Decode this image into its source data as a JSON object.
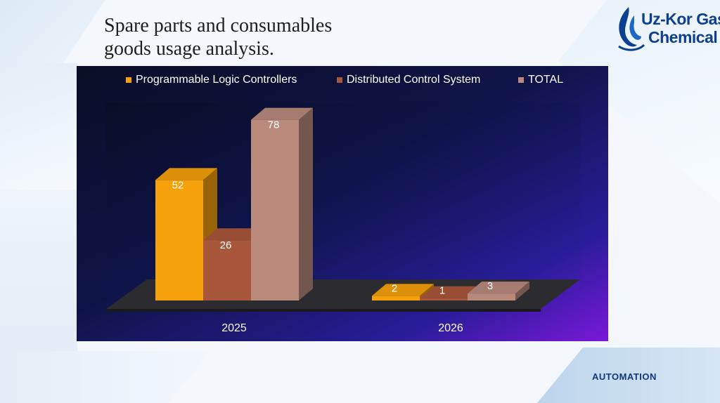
{
  "slide": {
    "title_line1": "Spare parts and consumables",
    "title_line2": "goods usage analysis.",
    "logo_line1": "Uz-Kor Gas",
    "logo_line2": "Chemical",
    "footer_label": "AUTOMATION"
  },
  "colors": {
    "chart_bg_dark": "#0b1030",
    "chart_bg_purple": "#7b16d6",
    "series1": "#f5a10c",
    "series2": "#a9573a",
    "series3": "#b98a7c",
    "floor": "#2a2a2e",
    "logo_blue": "#0d3f91"
  },
  "chart_data": {
    "type": "bar",
    "title": "",
    "categories": [
      "2025",
      "2026"
    ],
    "series": [
      {
        "name": "Programmable Logic Controllers",
        "values": [
          52,
          2
        ]
      },
      {
        "name": "Distributed Control System",
        "values": [
          26,
          1
        ]
      },
      {
        "name": "TOTAL",
        "values": [
          78,
          3
        ]
      }
    ],
    "ylim": [
      0,
      90
    ],
    "grid": false,
    "legend": "top",
    "xlabel": "",
    "ylabel": ""
  }
}
